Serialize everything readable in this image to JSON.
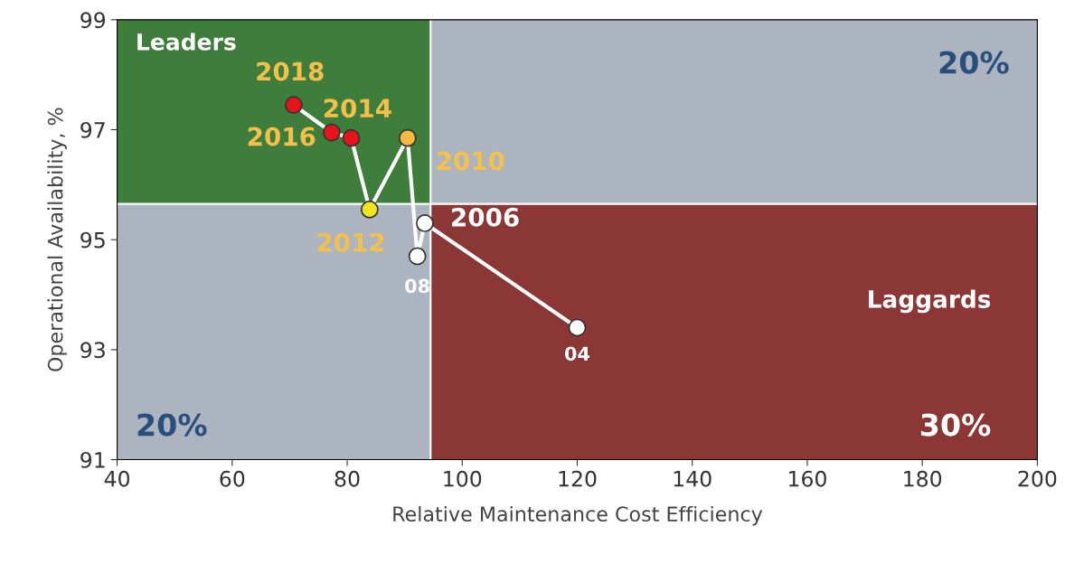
{
  "chart_data": {
    "type": "line",
    "xlabel": "Relative Maintenance Cost Efficiency",
    "ylabel": "Operational Availability, %",
    "xlim": [
      40,
      200
    ],
    "xticks": [
      40,
      60,
      80,
      100,
      120,
      140,
      160,
      180,
      200
    ],
    "ylim": [
      91,
      99
    ],
    "yticks": [
      91,
      93,
      95,
      97,
      99
    ],
    "grid": false,
    "marker": "circle",
    "line_style": "solid",
    "ref_lines": [
      {
        "axis": "x",
        "value": 94.5,
        "color": "#ffffff"
      },
      {
        "axis": "y",
        "value": 95.65,
        "color": "#ffffff"
      }
    ],
    "bands": [
      {
        "axis": "x",
        "from": 40,
        "to": 94.5,
        "color": "#3f7d3c"
      },
      {
        "axis": "y",
        "from": 91,
        "to": 95.65,
        "color": "#8a3736"
      }
    ],
    "series": [
      {
        "color": "#ffffff",
        "x": [
          120,
          93.5,
          92.2,
          90.5,
          83.9,
          80.7,
          77.3,
          70.7
        ],
        "values": [
          93.4,
          95.3,
          94.7,
          96.85,
          95.55,
          96.85,
          96.95,
          97.45
        ],
        "colors": [
          "#ffffff",
          "#ffffff",
          "#ffffff",
          "#f5b942",
          "#f2e41c",
          "#e8141c",
          "#e8141c",
          "#e8141c"
        ]
      }
    ],
    "annotations": [
      {
        "text": "04",
        "x": 120,
        "y": 93.4
      },
      {
        "text": "2006",
        "x": 93.5,
        "y": 95.3
      },
      {
        "text": "08",
        "x": 92.2,
        "y": 94.7
      },
      {
        "text": "2010",
        "x": 90.5,
        "y": 96.85
      },
      {
        "text": "2012",
        "x": 83.9,
        "y": 95.55
      },
      {
        "text": "2014",
        "x": 80.7,
        "y": 96.85
      },
      {
        "text": "2016",
        "x": 77.3,
        "y": 96.95
      },
      {
        "text": "2018",
        "x": 70.7,
        "y": 97.45
      },
      "Leaders",
      "20%",
      "20%",
      "Laggards",
      "30%"
    ]
  }
}
